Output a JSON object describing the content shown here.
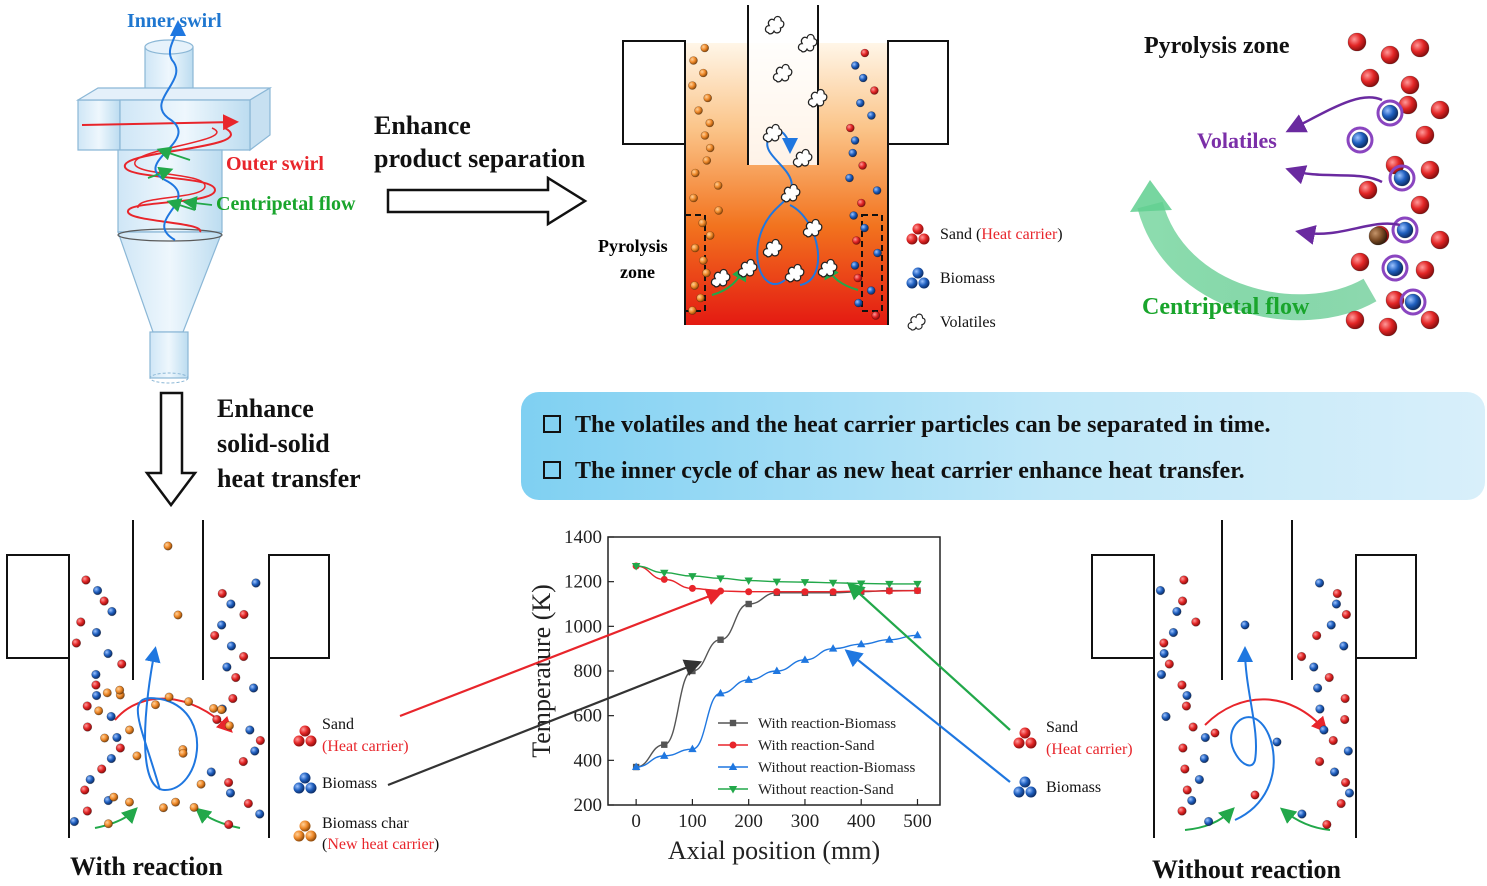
{
  "cyclone": {
    "inner_swirl": "Inner swirl",
    "outer_swirl": "Outer swirl",
    "centripetal_flow": "Centripetal flow"
  },
  "arrows": {
    "enhance_separation_line1": "Enhance",
    "enhance_separation_line2": "product separation",
    "enhance_heat_line1": "Enhance",
    "enhance_heat_line2": "solid-solid",
    "enhance_heat_line3": "heat transfer"
  },
  "reactor_top": {
    "pyrolysis_zone_line1": "Pyrolysis",
    "pyrolysis_zone_line2": "zone"
  },
  "legend_top": {
    "sand": "Sand (",
    "heat_carrier": "Heat carrier",
    "close_paren": ")",
    "biomass": "Biomass",
    "volatiles": "Volatiles"
  },
  "pyrolysis_panel": {
    "title": "Pyrolysis zone",
    "volatiles": "Volatiles",
    "centripetal_flow": "Centripetal flow"
  },
  "callout": {
    "line1": "The volatiles and the heat carrier particles can be separated in time.",
    "line2": "The inner cycle of char as new heat carrier enhance heat transfer."
  },
  "with_reaction": {
    "caption": "With reaction",
    "legend_sand": "Sand",
    "legend_heat_carrier": "(Heat carrier)",
    "legend_biomass": "Biomass",
    "legend_char": "Biomass char",
    "legend_new_carrier_open": "(",
    "legend_new_carrier": "New heat carrier",
    "legend_new_carrier_close": ")"
  },
  "without_reaction": {
    "caption": "Without reaction",
    "legend_sand": "Sand",
    "legend_heat_carrier": "(Heat carrier)",
    "legend_biomass": "Biomass"
  },
  "colors": {
    "sand": "#e32626",
    "biomass": "#1f5fbf",
    "char": "#f08a2a",
    "red_series": "#e8252b",
    "black_series": "#555555",
    "blue_series": "#1f77e0",
    "green_series": "#22a84a"
  },
  "chart_data": {
    "type": "line",
    "xlabel": "Axial position (mm)",
    "ylabel": "Temperature (K)",
    "xlim": [
      -50,
      540
    ],
    "ylim": [
      200,
      1400
    ],
    "xticks": [
      0,
      100,
      200,
      300,
      400,
      500
    ],
    "yticks": [
      200,
      400,
      600,
      800,
      1000,
      1200,
      1400
    ],
    "legend_position": "bottom-right",
    "series": [
      {
        "name": "With reaction-Biomass",
        "color": "#555555",
        "marker": "square",
        "x": [
          0,
          50,
          100,
          150,
          200,
          250,
          300,
          350,
          400,
          450,
          500
        ],
        "y": [
          370,
          470,
          800,
          940,
          1100,
          1150,
          1150,
          1150,
          1155,
          1160,
          1160
        ]
      },
      {
        "name": "With reaction-Sand",
        "color": "#e8252b",
        "marker": "circle",
        "x": [
          0,
          50,
          100,
          150,
          200,
          250,
          300,
          350,
          400,
          450,
          500
        ],
        "y": [
          1270,
          1210,
          1170,
          1158,
          1155,
          1155,
          1155,
          1155,
          1158,
          1158,
          1160
        ]
      },
      {
        "name": "Without reaction-Biomass",
        "color": "#1f77e0",
        "marker": "triangle-up",
        "x": [
          0,
          50,
          100,
          150,
          200,
          250,
          300,
          350,
          400,
          450,
          500
        ],
        "y": [
          370,
          420,
          450,
          700,
          760,
          800,
          850,
          900,
          920,
          940,
          960
        ]
      },
      {
        "name": "Without reaction-Sand",
        "color": "#22a84a",
        "marker": "triangle-down",
        "x": [
          0,
          50,
          100,
          150,
          200,
          250,
          300,
          350,
          400,
          450,
          500
        ],
        "y": [
          1270,
          1240,
          1225,
          1215,
          1205,
          1200,
          1198,
          1195,
          1192,
          1190,
          1190
        ]
      }
    ]
  }
}
